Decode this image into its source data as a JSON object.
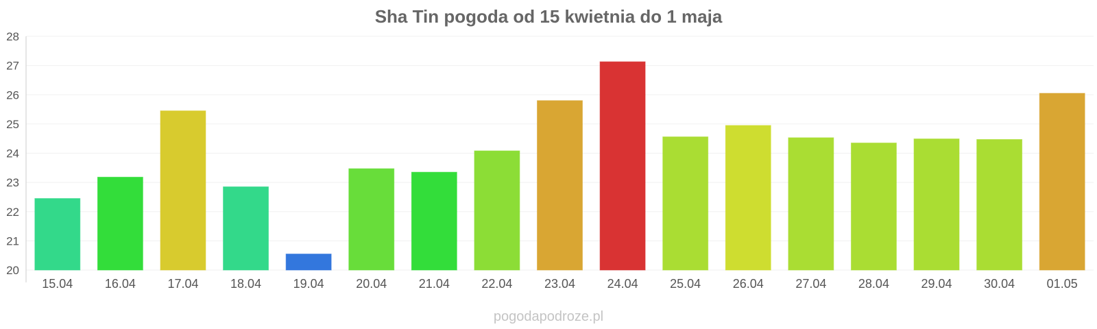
{
  "chart_data": {
    "type": "bar",
    "title": "Sha Tin pogoda od 15 kwietnia do 1 maja",
    "xlabel": "",
    "ylabel": "",
    "ylim": [
      20,
      28
    ],
    "yticks": [
      "20",
      "21",
      "22",
      "23",
      "24",
      "25",
      "26",
      "27",
      "28"
    ],
    "categories": [
      "15.04",
      "16.04",
      "17.04",
      "18.04",
      "19.04",
      "20.04",
      "21.04",
      "22.04",
      "23.04",
      "24.04",
      "25.04",
      "26.04",
      "27.04",
      "28.04",
      "29.04",
      "30.04",
      "01.05"
    ],
    "values": [
      22.45,
      23.18,
      25.45,
      22.85,
      20.55,
      23.47,
      23.35,
      24.08,
      25.8,
      27.13,
      24.56,
      24.95,
      24.53,
      24.35,
      24.49,
      24.47,
      26.05
    ],
    "colors": [
      "#33d98a",
      "#33dd3a",
      "#d8cb2e",
      "#33d98a",
      "#3377dd",
      "#68dd3a",
      "#33dd3a",
      "#8cdd36",
      "#d9a633",
      "#d93333",
      "#aadd33",
      "#cedd30",
      "#aadd33",
      "#aadd33",
      "#aadd33",
      "#aadd33",
      "#d9a633"
    ],
    "grid": true,
    "legend": "none"
  },
  "footer": {
    "credit": "pogodapodroze.pl"
  }
}
